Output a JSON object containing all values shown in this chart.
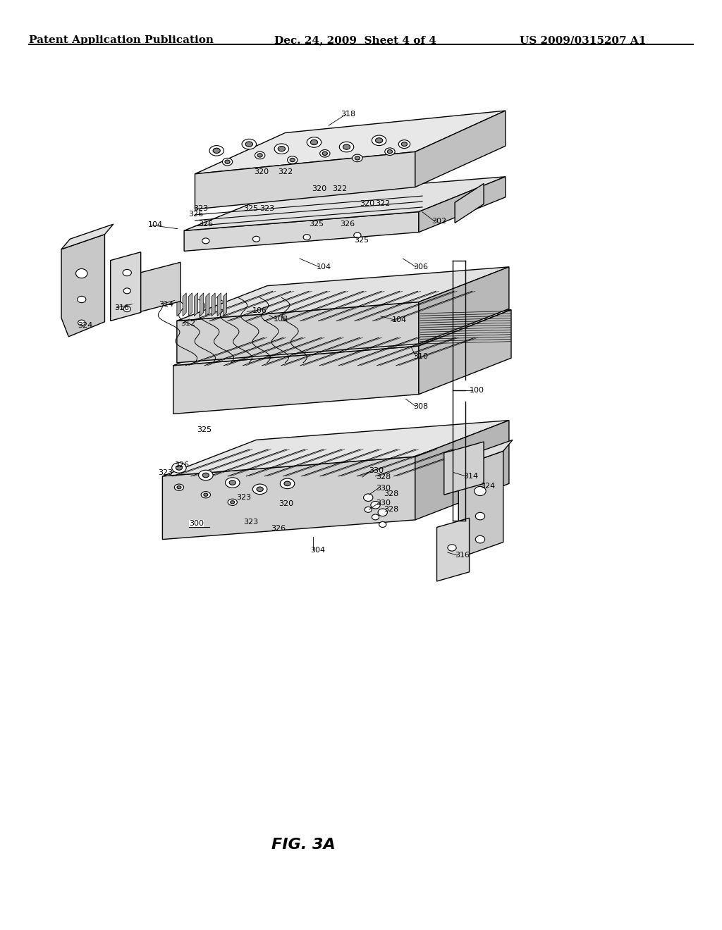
{
  "background_color": "#ffffff",
  "header_left": "Patent Application Publication",
  "header_middle": "Dec. 24, 2009  Sheet 4 of 4",
  "header_right": "US 2009/0315207 A1",
  "caption": "FIG. 3A",
  "header_fontsize": 11,
  "caption_fontsize": 16
}
